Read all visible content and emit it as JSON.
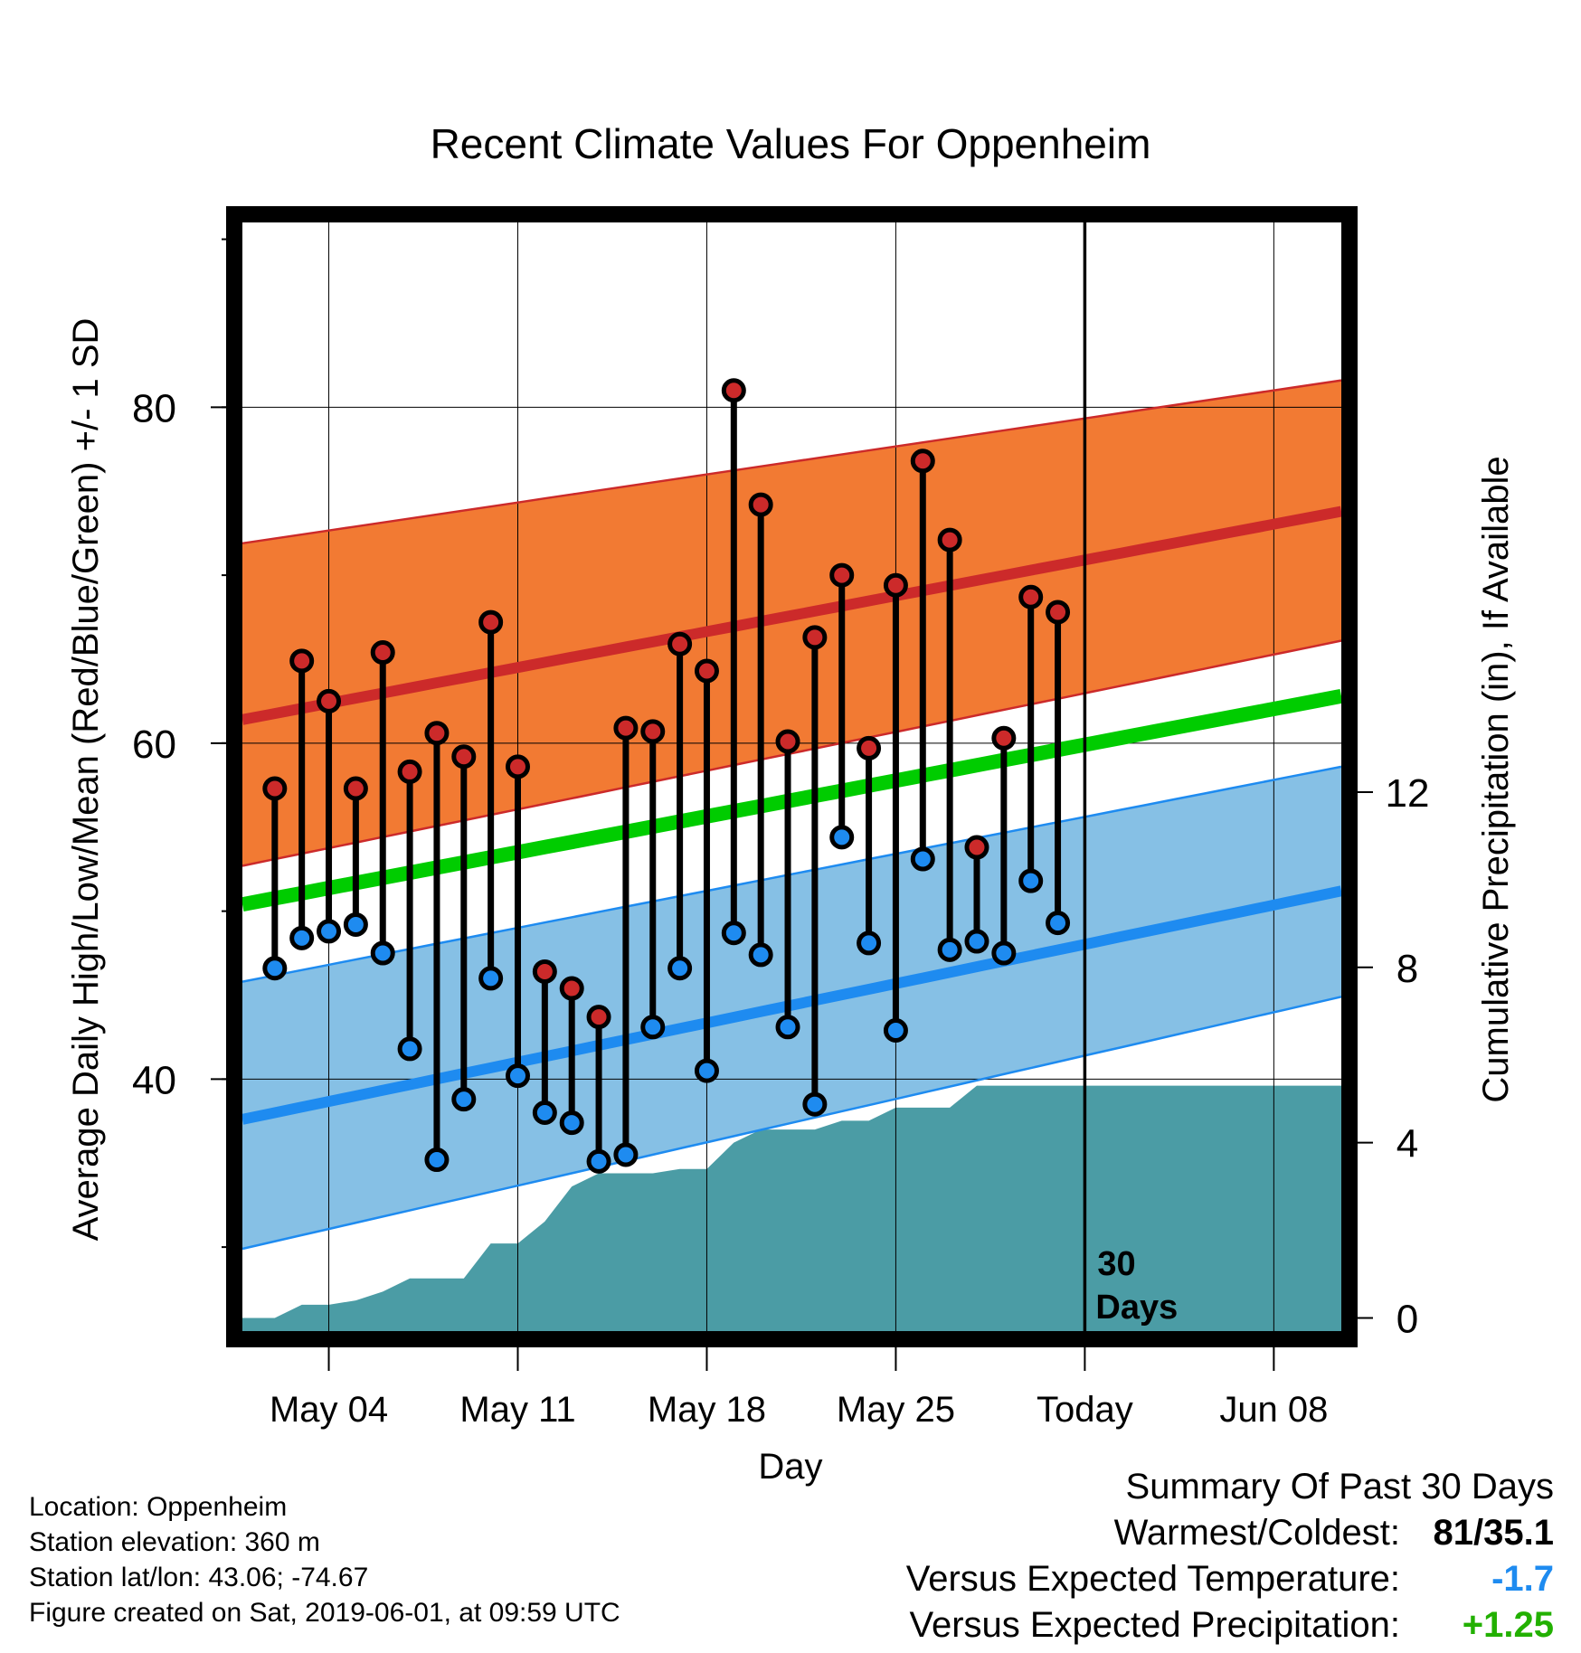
{
  "chart_data": {
    "type": "line",
    "title": "Recent Climate Values For Oppenheim",
    "xlabel": "Day",
    "ylabel_left": "Average Daily High/Low/Mean (Red/Blue/Green) +/- 1 SD",
    "ylabel_right": "Cumulative Precipitation (in), If Available",
    "x_ticks": [
      {
        "day": 4,
        "label": "May 04"
      },
      {
        "day": 11,
        "label": "May 11"
      },
      {
        "day": 18,
        "label": "May 18"
      },
      {
        "day": 25,
        "label": "May 25"
      },
      {
        "day": 32,
        "label": "Today"
      },
      {
        "day": 39,
        "label": "Jun 08"
      }
    ],
    "xlim": [
      0.8,
      41.5
    ],
    "ylim_left": [
      25,
      91
    ],
    "y_left_ticks": [
      40,
      60,
      80
    ],
    "ylim_right": [
      -0.3,
      25
    ],
    "y_right_ticks": [
      0,
      4,
      8,
      12
    ],
    "normal_ranges": {
      "x": [
        0.8,
        41.5
      ],
      "high_mean": [
        61.4,
        73.8
      ],
      "high_upper": [
        71.9,
        81.6
      ],
      "high_lower": [
        52.7,
        66.1
      ],
      "mean": [
        50.4,
        62.8
      ],
      "low_mean": [
        37.6,
        51.2
      ],
      "low_upper": [
        45.8,
        58.6
      ],
      "low_lower": [
        29.9,
        44.9
      ]
    },
    "series": [
      {
        "name": "High",
        "days": [
          2,
          3,
          4,
          5,
          6,
          7,
          8,
          9,
          10,
          11,
          12,
          13,
          14,
          15,
          16,
          17,
          18,
          19,
          20,
          21,
          22,
          23,
          24,
          25,
          26,
          27,
          28,
          29,
          30,
          31
        ],
        "values": [
          57.3,
          64.9,
          62.5,
          57.3,
          65.4,
          58.3,
          60.6,
          59.2,
          67.2,
          58.6,
          46.4,
          45.4,
          43.7,
          60.9,
          60.7,
          65.9,
          64.3,
          81.0,
          74.2,
          60.1,
          66.3,
          70.0,
          59.7,
          69.4,
          76.8,
          72.1,
          53.8,
          60.3,
          68.7,
          67.8
        ]
      },
      {
        "name": "Low",
        "days": [
          2,
          3,
          4,
          5,
          6,
          7,
          8,
          9,
          10,
          11,
          12,
          13,
          14,
          15,
          16,
          17,
          18,
          19,
          20,
          21,
          22,
          23,
          24,
          25,
          26,
          27,
          28,
          29,
          30,
          31
        ],
        "values": [
          46.6,
          48.4,
          48.8,
          49.2,
          47.5,
          41.8,
          35.2,
          38.8,
          46.0,
          40.2,
          38.0,
          37.4,
          35.1,
          35.5,
          43.1,
          46.6,
          40.5,
          48.7,
          47.4,
          43.1,
          38.5,
          54.4,
          48.1,
          42.9,
          53.1,
          47.7,
          48.2,
          47.5,
          51.8,
          49.3
        ]
      }
    ],
    "precipitation": {
      "x": [
        0.8,
        2,
        3,
        4,
        5,
        6,
        7,
        8,
        9,
        10,
        11,
        12,
        13,
        14,
        15,
        16,
        17,
        18,
        19,
        20,
        21,
        22,
        23,
        24,
        25,
        26,
        27,
        28,
        29,
        30,
        31,
        32,
        41.5
      ],
      "values": [
        0,
        0,
        0.3,
        0.3,
        0.4,
        0.6,
        0.9,
        0.9,
        0.9,
        1.7,
        1.7,
        2.2,
        3.0,
        3.3,
        3.3,
        3.3,
        3.4,
        3.4,
        4.0,
        4.3,
        4.3,
        4.3,
        4.5,
        4.5,
        4.8,
        4.8,
        4.8,
        5.3,
        5.3,
        5.3,
        5.3,
        5.3,
        5.3
      ]
    },
    "today_label": [
      "30",
      "Days"
    ],
    "colors": {
      "high": "#cc2a2a",
      "high_band": "#f27a33",
      "low": "#1e8bf0",
      "low_band": "#86c0e5",
      "mean": "#00cc00",
      "precip": "#4b9ca5",
      "frame": "#000000"
    }
  },
  "info": {
    "location": "Location: Oppenheim",
    "elevation": "Station elevation: 360 m",
    "latlon": "Station lat/lon: 43.06; -74.67",
    "created": "Figure created on Sat, 2019-06-01, at 09:59 UTC"
  },
  "summary": {
    "title": "Summary Of Past 30 Days",
    "warmest_coldest_label": "Warmest/Coldest:",
    "warmest_coldest_value": "81/35.1",
    "temp_label": "Versus Expected Temperature:",
    "temp_value": "-1.7",
    "temp_color": "#1e8bf0",
    "precip_label": "Versus Expected Precipitation:",
    "precip_value": "+1.25",
    "precip_color": "#22b000"
  }
}
